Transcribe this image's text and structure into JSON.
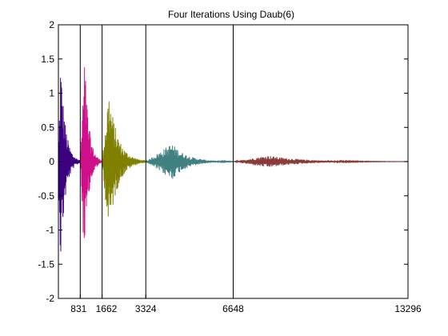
{
  "chart_data": {
    "type": "line",
    "title": "Four Iterations Using Daub(6)",
    "xlabel": "",
    "ylabel": "",
    "xlim": [
      0,
      13296
    ],
    "ylim": [
      -2,
      2
    ],
    "grid": false,
    "legend": "none",
    "x_ticks": [
      831,
      1662,
      3324,
      6648,
      13296
    ],
    "x_tick_labels": [
      "831",
      "1662",
      "3324",
      "6648",
      "13296"
    ],
    "y_ticks": [
      -2,
      -1.5,
      -1,
      -0.5,
      0,
      0.5,
      1,
      1.5,
      2
    ],
    "y_tick_labels": [
      "-2",
      "-1.5",
      "-1",
      "-0.5",
      "0",
      "0.5",
      "1",
      "1.5",
      "2"
    ],
    "boundaries": [
      831,
      1662,
      3324,
      6648,
      13296
    ],
    "series": [
      {
        "x_range": [
          0,
          831
        ],
        "amplitude": 1.55,
        "envelope_peak": 0.1,
        "color": "#3a0080"
      },
      {
        "x_range": [
          831,
          1662
        ],
        "amplitude": 1.55,
        "envelope_peak": 0.2,
        "color": "#d0108a"
      },
      {
        "x_range": [
          1662,
          3324
        ],
        "amplitude": 1.08,
        "envelope_peak": 0.15,
        "color": "#808000"
      },
      {
        "x_range": [
          3324,
          6648
        ],
        "amplitude": 0.27,
        "envelope_peak": 0.3,
        "color": "#408080"
      },
      {
        "x_range": [
          6648,
          13296
        ],
        "amplitude": 0.09,
        "envelope_peak": 0.2,
        "color": "#8b3a3a"
      }
    ]
  }
}
